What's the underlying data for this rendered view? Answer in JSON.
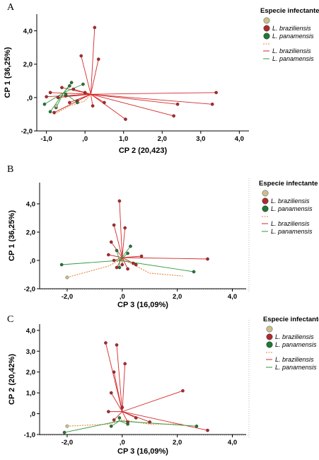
{
  "colors": {
    "brazil": "#d42a2a",
    "brazil_point": "#b0282d",
    "panama": "#2f9a3f",
    "panama_point": "#1e7a35",
    "origin_marker": "#ccc08a",
    "orange_line": "#e8833a",
    "axis": "#000000"
  },
  "chart_data": [
    {
      "type": "scatter",
      "panel": "A",
      "xlabel": "CP 2 (20,423)",
      "ylabel": "CP 1 (36,25%)",
      "xlim": [
        -1.25,
        4.25
      ],
      "ylim": [
        -2.0,
        5.0
      ],
      "x_ticks": [
        -1.0,
        0.0,
        1.0,
        2.0,
        3.0,
        4.0
      ],
      "x_tick_labels": [
        "-1,0",
        ",0",
        "1,0",
        "2,0",
        "3,0",
        "4,0"
      ],
      "y_ticks": [
        -2.0,
        0.0,
        2.0,
        4.0
      ],
      "y_tick_labels": [
        "-2,0",
        ",0",
        "2,0",
        "4,0"
      ],
      "centroid_brazil": [
        0.15,
        0.2
      ],
      "centroid_panama": [
        -0.55,
        0.3
      ],
      "legend": {
        "title": "Especie infectante",
        "entries": [
          "L. braziliensis",
          "L. panamensis",
          "L. braziliensis",
          "L. panamensis"
        ]
      },
      "series": [
        {
          "name": "L. braziliensis",
          "color": "brazil",
          "points": [
            [
              0.25,
              4.2
            ],
            [
              -0.1,
              2.5
            ],
            [
              0.35,
              2.3
            ],
            [
              3.4,
              0.3
            ],
            [
              3.3,
              -0.4
            ],
            [
              2.4,
              -0.4
            ],
            [
              2.3,
              -1.1
            ],
            [
              1.05,
              -1.3
            ],
            [
              0.5,
              -0.3
            ],
            [
              0.2,
              -0.5
            ],
            [
              -0.3,
              0.5
            ],
            [
              -0.6,
              0.6
            ],
            [
              -0.5,
              0.1
            ],
            [
              -0.7,
              0.0
            ],
            [
              -0.9,
              0.3
            ],
            [
              -1.0,
              0.05
            ],
            [
              -0.2,
              -0.2
            ],
            [
              0.0,
              0.3
            ],
            [
              -0.4,
              -0.3
            ],
            [
              -0.8,
              -0.9
            ]
          ]
        },
        {
          "name": "L. panamensis",
          "color": "panama",
          "points": [
            [
              -0.35,
              0.9
            ],
            [
              -0.05,
              0.8
            ],
            [
              -0.4,
              0.7
            ],
            [
              -0.2,
              -0.3
            ],
            [
              -1.05,
              -0.4
            ],
            [
              -0.5,
              0.2
            ],
            [
              -0.9,
              -0.85
            ],
            [
              -0.75,
              -0.6
            ]
          ]
        }
      ],
      "orange_path": [
        [
          -0.8,
          -1.0
        ],
        [
          -0.4,
          -0.5
        ],
        [
          0.0,
          -0.2
        ],
        [
          0.15,
          0.2
        ]
      ],
      "origin_marker": [
        -0.75,
        -0.5
      ]
    },
    {
      "type": "scatter",
      "panel": "B",
      "xlabel": "CP 3 (16,09%)",
      "ylabel": "CP 1 (36,25%)",
      "xlim": [
        -3.0,
        4.5
      ],
      "ylim": [
        -2.0,
        5.5
      ],
      "x_ticks": [
        -2.0,
        0.0,
        2.0,
        4.0
      ],
      "x_tick_labels": [
        "-2,0",
        ",0",
        "2,0",
        "4,0"
      ],
      "y_ticks": [
        -2.0,
        0.0,
        2.0,
        4.0
      ],
      "y_tick_labels": [
        "-2,0",
        ",0",
        "2,0",
        "4,0"
      ],
      "centroid_brazil": [
        0.0,
        0.2
      ],
      "centroid_panama": [
        -0.1,
        0.0
      ],
      "legend": {
        "title": "Especie infectante",
        "entries": [
          "L. braziliensis",
          "L. panamensis",
          "L. braziliensis",
          "L. panamensis"
        ]
      },
      "series": [
        {
          "name": "L. braziliensis",
          "color": "brazil",
          "points": [
            [
              -0.1,
              4.2
            ],
            [
              -0.3,
              2.5
            ],
            [
              0.1,
              2.3
            ],
            [
              -0.4,
              1.3
            ],
            [
              3.1,
              0.1
            ],
            [
              0.7,
              0.3
            ],
            [
              0.4,
              -0.2
            ],
            [
              0.2,
              -0.6
            ],
            [
              -0.5,
              0.4
            ],
            [
              -0.2,
              -0.5
            ],
            [
              0.5,
              -0.3
            ],
            [
              -0.3,
              0.0
            ],
            [
              0.0,
              -0.3
            ]
          ]
        },
        {
          "name": "L. panamensis",
          "color": "panama",
          "points": [
            [
              2.6,
              -0.8
            ],
            [
              -2.2,
              -0.3
            ],
            [
              0.3,
              1.0
            ],
            [
              -0.2,
              0.7
            ],
            [
              0.2,
              0.5
            ],
            [
              -0.1,
              -0.5
            ]
          ]
        }
      ],
      "orange_path": [
        [
          -2.0,
          -1.2
        ],
        [
          -0.5,
          -0.4
        ],
        [
          0.0,
          0.1
        ],
        [
          1.0,
          -0.9
        ],
        [
          2.2,
          -1.1
        ]
      ],
      "origin_marker": [
        -2.0,
        -1.2
      ]
    },
    {
      "type": "scatter",
      "panel": "C",
      "xlabel": "CP 3 (16,09%)",
      "ylabel": "CP 2 (20,42%)",
      "xlim": [
        -3.0,
        4.5
      ],
      "ylim": [
        -1.0,
        4.3
      ],
      "x_ticks": [
        -2.0,
        0.0,
        2.0,
        4.0
      ],
      "x_tick_labels": [
        "-2,0",
        ",0",
        "2,0",
        "4,0"
      ],
      "y_ticks": [
        -1.0,
        0.0,
        1.0,
        2.0,
        3.0,
        4.0
      ],
      "y_tick_labels": [
        "-1,0",
        ",0",
        "1,0",
        "2,0",
        "3,0",
        "4,0"
      ],
      "centroid_brazil": [
        0.0,
        0.1
      ],
      "centroid_panama": [
        -0.1,
        -0.35
      ],
      "legend": {
        "title": "Especie infectante",
        "entries": [
          "L. braziliensis",
          "L. panamensis",
          "L. braziliensis",
          "L. panamensis"
        ]
      },
      "series": [
        {
          "name": "L. braziliensis",
          "color": "brazil",
          "points": [
            [
              -0.6,
              3.4
            ],
            [
              -0.2,
              3.3
            ],
            [
              0.1,
              2.4
            ],
            [
              -0.3,
              2.0
            ],
            [
              2.2,
              1.1
            ],
            [
              -0.4,
              1.0
            ],
            [
              3.1,
              -0.8
            ],
            [
              0.5,
              -0.2
            ],
            [
              1.0,
              -0.4
            ],
            [
              -0.5,
              0.1
            ],
            [
              -0.3,
              -0.3
            ],
            [
              0.2,
              -0.4
            ],
            [
              0.0,
              0.3
            ]
          ]
        },
        {
          "name": "L. panamensis",
          "color": "panama",
          "points": [
            [
              -2.1,
              -0.9
            ],
            [
              2.7,
              -0.6
            ],
            [
              0.2,
              -0.5
            ],
            [
              -0.4,
              -0.6
            ],
            [
              -0.1,
              -0.2
            ]
          ]
        }
      ],
      "orange_path": [
        [
          -2.0,
          -0.6
        ],
        [
          -0.5,
          -0.5
        ],
        [
          0.0,
          -0.3
        ],
        [
          1.0,
          -0.5
        ],
        [
          2.2,
          -0.5
        ]
      ],
      "origin_marker": [
        -2.0,
        -0.6
      ]
    }
  ]
}
